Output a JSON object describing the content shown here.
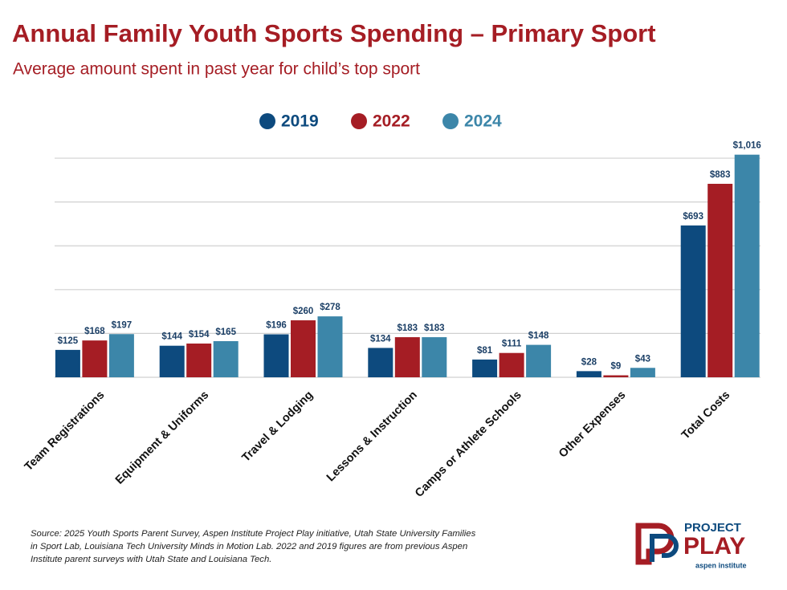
{
  "chart_data": {
    "type": "bar",
    "title": "Annual Family Youth Sports Spending – Primary Sport",
    "subtitle": "Average amount spent in past year for child’s top sport",
    "categories": [
      "Team Registrations",
      "Equipment & Uniforms",
      "Travel & Lodging",
      "Lessons & Instruction",
      "Camps or Athlete Schools",
      "Other Expenses",
      "Total Costs"
    ],
    "series": [
      {
        "name": "2019",
        "color": "#0d4a7e",
        "values": [
          125,
          144,
          196,
          134,
          81,
          28,
          693
        ],
        "value_labels": [
          "$125",
          "$144",
          "$196",
          "$134",
          "$81",
          "$28",
          "$693"
        ]
      },
      {
        "name": "2022",
        "color": "#a51d24",
        "values": [
          168,
          154,
          260,
          183,
          111,
          9,
          883
        ],
        "value_labels": [
          "$168",
          "$154",
          "$260",
          "$183",
          "$111",
          "$9",
          "$883"
        ]
      },
      {
        "name": "2024",
        "color": "#3c86a9",
        "values": [
          197,
          165,
          278,
          183,
          148,
          43,
          1016
        ],
        "value_labels": [
          "$197",
          "$165",
          "$278",
          "$183",
          "$148",
          "$43",
          "$1,016"
        ]
      }
    ],
    "ylim": [
      0,
      1050
    ],
    "yticks": [
      0,
      200,
      400,
      600,
      800,
      1000
    ],
    "show_ytick_labels": false,
    "grid": true,
    "legend": "top",
    "source": "Source: 2025 Youth Sports Parent Survey, Aspen Institute Project Play initiative, Utah State University Families in Sport Lab, Louisiana Tech University Minds in Motion Lab. 2022 and 2019 figures are from previous Aspen Institute parent surveys with Utah State and Louisiana Tech.",
    "logo": {
      "line1": "PROJECT",
      "line2": "PLAY",
      "line3": "aspen institute"
    }
  }
}
